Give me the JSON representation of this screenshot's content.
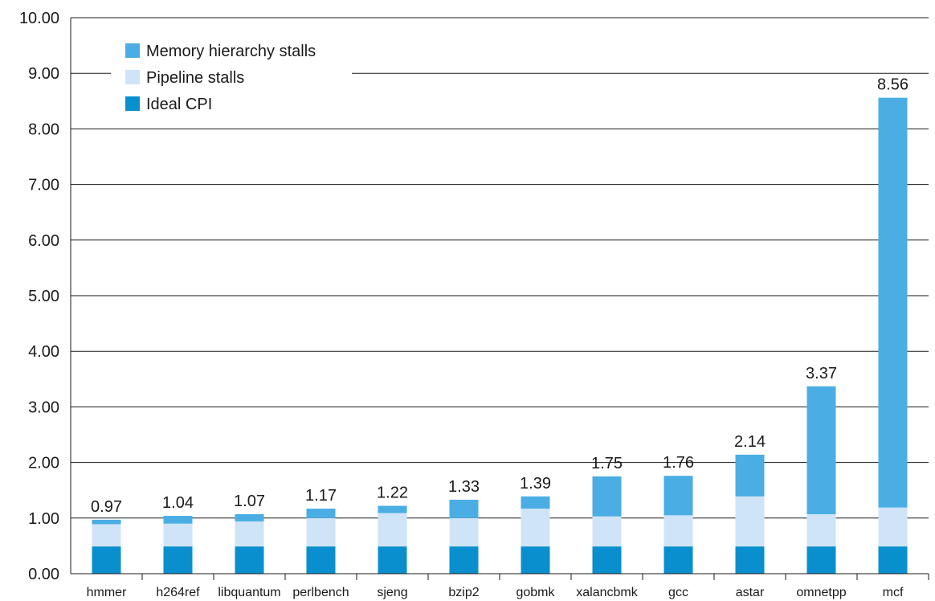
{
  "chart_data": {
    "type": "bar",
    "stacked": true,
    "categories": [
      "hmmer",
      "h264ref",
      "libquantum",
      "perlbench",
      "sjeng",
      "bzip2",
      "gobmk",
      "xalancbmk",
      "gcc",
      "astar",
      "omnetpp",
      "mcf"
    ],
    "series": [
      {
        "name": "Ideal CPI",
        "color": "#0a8fce",
        "values": [
          0.49,
          0.49,
          0.49,
          0.49,
          0.49,
          0.49,
          0.49,
          0.49,
          0.49,
          0.49,
          0.49,
          0.49
        ]
      },
      {
        "name": "Pipeline stalls",
        "color": "#cfe4f7",
        "values": [
          0.4,
          0.41,
          0.45,
          0.51,
          0.6,
          0.51,
          0.68,
          0.54,
          0.56,
          0.9,
          0.58,
          0.7
        ]
      },
      {
        "name": "Memory hierarchy stalls",
        "color": "#4aaee5",
        "values": [
          0.08,
          0.14,
          0.13,
          0.17,
          0.13,
          0.33,
          0.22,
          0.72,
          0.71,
          0.75,
          2.3,
          7.37
        ]
      }
    ],
    "totals": [
      "0.97",
      "1.04",
      "1.07",
      "1.17",
      "1.22",
      "1.33",
      "1.39",
      "1.75",
      "1.76",
      "2.14",
      "3.37",
      "8.56"
    ],
    "yticks": [
      "0.00",
      "1.00",
      "2.00",
      "3.00",
      "4.00",
      "5.00",
      "6.00",
      "7.00",
      "8.00",
      "9.00",
      "10.00"
    ],
    "ylim": [
      0,
      10
    ],
    "grid": true,
    "legend": {
      "position": "top-left",
      "entries": [
        {
          "label": "Memory hierarchy stalls",
          "color": "#4aaee5"
        },
        {
          "label": "Pipeline stalls",
          "color": "#cfe4f7"
        },
        {
          "label": "Ideal CPI",
          "color": "#0a8fce"
        }
      ]
    }
  }
}
